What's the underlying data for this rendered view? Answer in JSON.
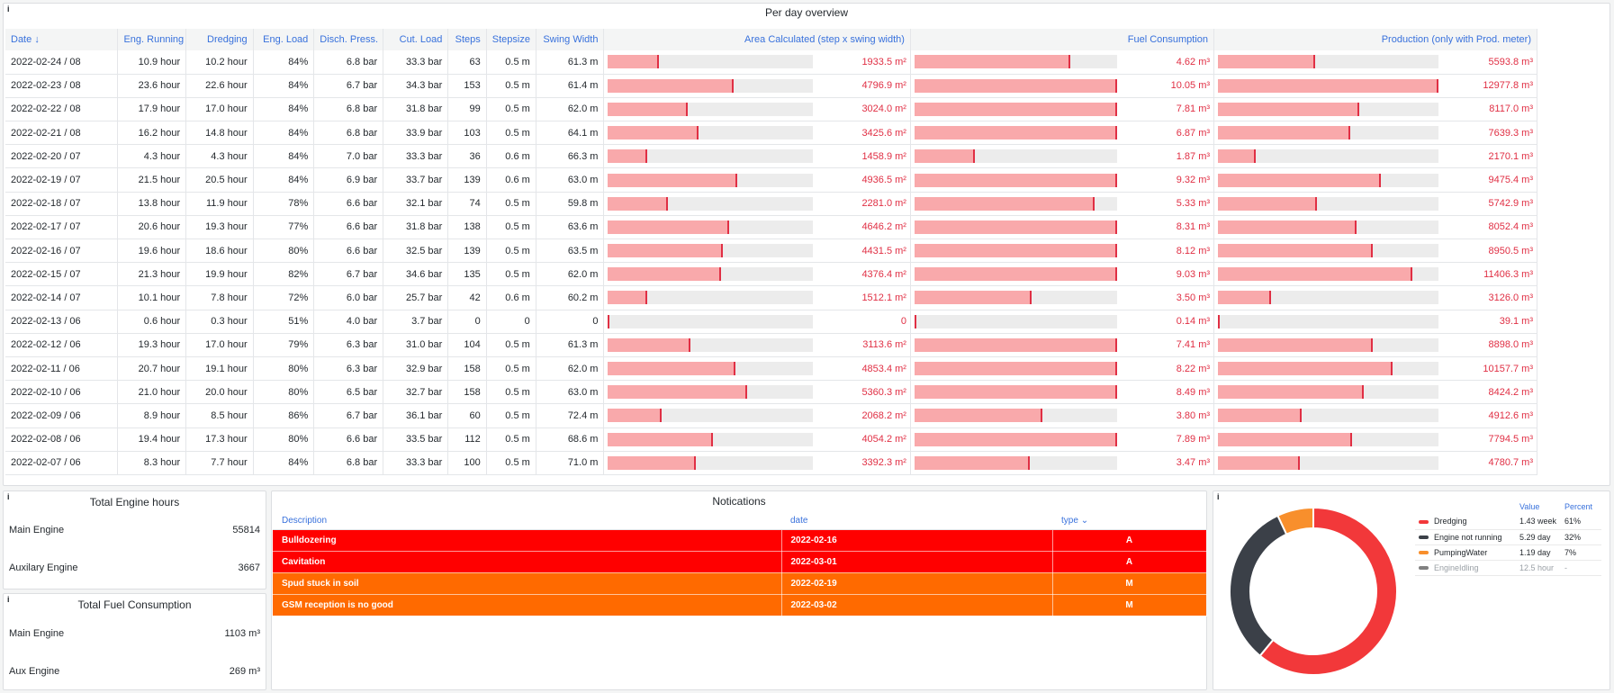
{
  "overview": {
    "title": "Per day overview",
    "info": "i",
    "columns": [
      "Date",
      "Eng. Running",
      "Dredging",
      "Eng. Load",
      "Disch. Press.",
      "Cut. Load",
      "Steps",
      "Stepsize",
      "Swing Width",
      "Area Calculated (step x swing width)",
      "Fuel Consumption",
      "Production (only with Prod. meter)"
    ],
    "sort_indicator": "↓",
    "rows": [
      {
        "date": "2022-02-24 / 08",
        "run": "10.9 hour",
        "dredge": "10.2 hour",
        "load": "84%",
        "disch": "6.8 bar",
        "cut": "33.3 bar",
        "steps": "63",
        "stepsize": "0.5 m",
        "swing": "61.3 m",
        "area": "1933.5 m²",
        "area_f": 0.25,
        "fuel": "4.62 m³",
        "fuel_f": 0.77,
        "prod": "5593.8 m³",
        "prod_f": 0.44
      },
      {
        "date": "2022-02-23 / 08",
        "run": "23.6 hour",
        "dredge": "22.6 hour",
        "load": "84%",
        "disch": "6.7 bar",
        "cut": "34.3 bar",
        "steps": "153",
        "stepsize": "0.5 m",
        "swing": "61.4 m",
        "area": "4796.9 m²",
        "area_f": 0.61,
        "fuel": "10.05 m³",
        "fuel_f": 1.0,
        "prod": "12977.8 m³",
        "prod_f": 1.0
      },
      {
        "date": "2022-02-22 / 08",
        "run": "17.9 hour",
        "dredge": "17.0 hour",
        "load": "84%",
        "disch": "6.8 bar",
        "cut": "31.8 bar",
        "steps": "99",
        "stepsize": "0.5 m",
        "swing": "62.0 m",
        "area": "3024.0 m²",
        "area_f": 0.39,
        "fuel": "7.81 m³",
        "fuel_f": 1.0,
        "prod": "8117.0 m³",
        "prod_f": 0.64
      },
      {
        "date": "2022-02-21 / 08",
        "run": "16.2 hour",
        "dredge": "14.8 hour",
        "load": "84%",
        "disch": "6.8 bar",
        "cut": "33.9 bar",
        "steps": "103",
        "stepsize": "0.5 m",
        "swing": "64.1 m",
        "area": "3425.6 m²",
        "area_f": 0.44,
        "fuel": "6.87 m³",
        "fuel_f": 1.0,
        "prod": "7639.3 m³",
        "prod_f": 0.6
      },
      {
        "date": "2022-02-20 / 07",
        "run": "4.3 hour",
        "dredge": "4.3 hour",
        "load": "84%",
        "disch": "7.0 bar",
        "cut": "33.3 bar",
        "steps": "36",
        "stepsize": "0.6 m",
        "swing": "66.3 m",
        "area": "1458.9 m²",
        "area_f": 0.19,
        "fuel": "1.87 m³",
        "fuel_f": 0.3,
        "prod": "2170.1 m³",
        "prod_f": 0.17
      },
      {
        "date": "2022-02-19 / 07",
        "run": "21.5 hour",
        "dredge": "20.5 hour",
        "load": "84%",
        "disch": "6.9 bar",
        "cut": "33.7 bar",
        "steps": "139",
        "stepsize": "0.6 m",
        "swing": "63.0 m",
        "area": "4936.5 m²",
        "area_f": 0.63,
        "fuel": "9.32 m³",
        "fuel_f": 1.0,
        "prod": "9475.4 m³",
        "prod_f": 0.74
      },
      {
        "date": "2022-02-18 / 07",
        "run": "13.8 hour",
        "dredge": "11.9 hour",
        "load": "78%",
        "disch": "6.6 bar",
        "cut": "32.1 bar",
        "steps": "74",
        "stepsize": "0.5 m",
        "swing": "59.8 m",
        "area": "2281.0 m²",
        "area_f": 0.29,
        "fuel": "5.33 m³",
        "fuel_f": 0.89,
        "prod": "5742.9 m³",
        "prod_f": 0.45
      },
      {
        "date": "2022-02-17 / 07",
        "run": "20.6 hour",
        "dredge": "19.3 hour",
        "load": "77%",
        "disch": "6.6 bar",
        "cut": "31.8 bar",
        "steps": "138",
        "stepsize": "0.5 m",
        "swing": "63.6 m",
        "area": "4646.2 m²",
        "area_f": 0.59,
        "fuel": "8.31 m³",
        "fuel_f": 1.0,
        "prod": "8052.4 m³",
        "prod_f": 0.63
      },
      {
        "date": "2022-02-16 / 07",
        "run": "19.6 hour",
        "dredge": "18.6 hour",
        "load": "80%",
        "disch": "6.6 bar",
        "cut": "32.5 bar",
        "steps": "139",
        "stepsize": "0.5 m",
        "swing": "63.5 m",
        "area": "4431.5 m²",
        "area_f": 0.56,
        "fuel": "8.12 m³",
        "fuel_f": 1.0,
        "prod": "8950.5 m³",
        "prod_f": 0.7
      },
      {
        "date": "2022-02-15 / 07",
        "run": "21.3 hour",
        "dredge": "19.9 hour",
        "load": "82%",
        "disch": "6.7 bar",
        "cut": "34.6 bar",
        "steps": "135",
        "stepsize": "0.5 m",
        "swing": "62.0 m",
        "area": "4376.4 m²",
        "area_f": 0.55,
        "fuel": "9.03 m³",
        "fuel_f": 1.0,
        "prod": "11406.3 m³",
        "prod_f": 0.88
      },
      {
        "date": "2022-02-14 / 07",
        "run": "10.1 hour",
        "dredge": "7.8 hour",
        "load": "72%",
        "disch": "6.0 bar",
        "cut": "25.7 bar",
        "steps": "42",
        "stepsize": "0.6 m",
        "swing": "60.2 m",
        "area": "1512.1 m²",
        "area_f": 0.19,
        "fuel": "3.50 m³",
        "fuel_f": 0.58,
        "prod": "3126.0 m³",
        "prod_f": 0.24
      },
      {
        "date": "2022-02-13 / 06",
        "run": "0.6 hour",
        "dredge": "0.3 hour",
        "load": "51%",
        "disch": "4.0 bar",
        "cut": "3.7 bar",
        "steps": "0",
        "stepsize": "0",
        "swing": "0",
        "area": "0",
        "area_f": 0.0,
        "fuel": "0.14 m³",
        "fuel_f": 0.01,
        "prod": "39.1 m³",
        "prod_f": 0.01
      },
      {
        "date": "2022-02-12 / 06",
        "run": "19.3 hour",
        "dredge": "17.0 hour",
        "load": "79%",
        "disch": "6.3 bar",
        "cut": "31.0 bar",
        "steps": "104",
        "stepsize": "0.5 m",
        "swing": "61.3 m",
        "area": "3113.6 m²",
        "area_f": 0.4,
        "fuel": "7.41 m³",
        "fuel_f": 1.0,
        "prod": "8898.0 m³",
        "prod_f": 0.7
      },
      {
        "date": "2022-02-11 / 06",
        "run": "20.7 hour",
        "dredge": "19.1 hour",
        "load": "80%",
        "disch": "6.3 bar",
        "cut": "32.9 bar",
        "steps": "158",
        "stepsize": "0.5 m",
        "swing": "62.0 m",
        "area": "4853.4 m²",
        "area_f": 0.62,
        "fuel": "8.22 m³",
        "fuel_f": 1.0,
        "prod": "10157.7 m³",
        "prod_f": 0.79
      },
      {
        "date": "2022-02-10 / 06",
        "run": "21.0 hour",
        "dredge": "20.0 hour",
        "load": "80%",
        "disch": "6.5 bar",
        "cut": "32.7 bar",
        "steps": "158",
        "stepsize": "0.5 m",
        "swing": "63.0 m",
        "area": "5360.3 m²",
        "area_f": 0.68,
        "fuel": "8.49 m³",
        "fuel_f": 1.0,
        "prod": "8424.2 m³",
        "prod_f": 0.66
      },
      {
        "date": "2022-02-09 / 06",
        "run": "8.9 hour",
        "dredge": "8.5 hour",
        "load": "86%",
        "disch": "6.7 bar",
        "cut": "36.1 bar",
        "steps": "60",
        "stepsize": "0.5 m",
        "swing": "72.4 m",
        "area": "2068.2 m²",
        "area_f": 0.26,
        "fuel": "3.80 m³",
        "fuel_f": 0.63,
        "prod": "4912.6 m³",
        "prod_f": 0.38
      },
      {
        "date": "2022-02-08 / 06",
        "run": "19.4 hour",
        "dredge": "17.3 hour",
        "load": "80%",
        "disch": "6.6 bar",
        "cut": "33.5 bar",
        "steps": "112",
        "stepsize": "0.5 m",
        "swing": "68.6 m",
        "area": "4054.2 m²",
        "area_f": 0.51,
        "fuel": "7.89 m³",
        "fuel_f": 1.0,
        "prod": "7794.5 m³",
        "prod_f": 0.61
      },
      {
        "date": "2022-02-07 / 06",
        "run": "8.3 hour",
        "dredge": "7.7 hour",
        "load": "84%",
        "disch": "6.8 bar",
        "cut": "33.3 bar",
        "steps": "100",
        "stepsize": "0.5 m",
        "swing": "71.0 m",
        "area": "3392.3 m²",
        "area_f": 0.43,
        "fuel": "3.47 m³",
        "fuel_f": 0.57,
        "prod": "4780.7 m³",
        "prod_f": 0.37
      }
    ]
  },
  "engine_hours": {
    "info": "i",
    "title": "Total Engine hours",
    "main_label": "Main Engine",
    "main_value": "55814",
    "aux_label": "Auxilary Engine",
    "aux_value": "3667"
  },
  "fuel_total": {
    "info": "i",
    "title": "Total Fuel Consumption",
    "main_label": "Main Engine",
    "main_value": "1103 m³",
    "aux_label": "Aux Engine",
    "aux_value": "269 m³"
  },
  "notifications": {
    "title": "Notications",
    "columns": [
      "Description",
      "date",
      "type"
    ],
    "type_sort_indicator": "⌄",
    "rows": [
      {
        "description": "Bulldozering",
        "date": "2022-02-16",
        "type": "A",
        "color": "#ff0000"
      },
      {
        "description": "Cavitation",
        "date": "2022-03-01",
        "type": "A",
        "color": "#ff0000"
      },
      {
        "description": "Spud stuck in soil",
        "date": "2022-02-19",
        "type": "M",
        "color": "#ff6a00"
      },
      {
        "description": "GSM reception is no good",
        "date": "2022-03-02",
        "type": "M",
        "color": "#ff6a00"
      }
    ]
  },
  "pie": {
    "info": "i",
    "legend_headers": [
      "Value",
      "Percent"
    ],
    "chart_data": {
      "type": "pie",
      "series": [
        {
          "name": "Dredging",
          "value": "1.43 week",
          "percent": "61%",
          "fraction": 0.61,
          "color": "#f2383a"
        },
        {
          "name": "Engine not running",
          "value": "5.29 day",
          "percent": "32%",
          "fraction": 0.32,
          "color": "#3b4048"
        },
        {
          "name": "PumpingWater",
          "value": "1.19 day",
          "percent": "7%",
          "fraction": 0.07,
          "color": "#f88f2c"
        },
        {
          "name": "EngineIdling",
          "value": "12.5 hour",
          "percent": "-",
          "fraction": 0.0,
          "color": "#808080",
          "muted": true
        }
      ]
    }
  }
}
